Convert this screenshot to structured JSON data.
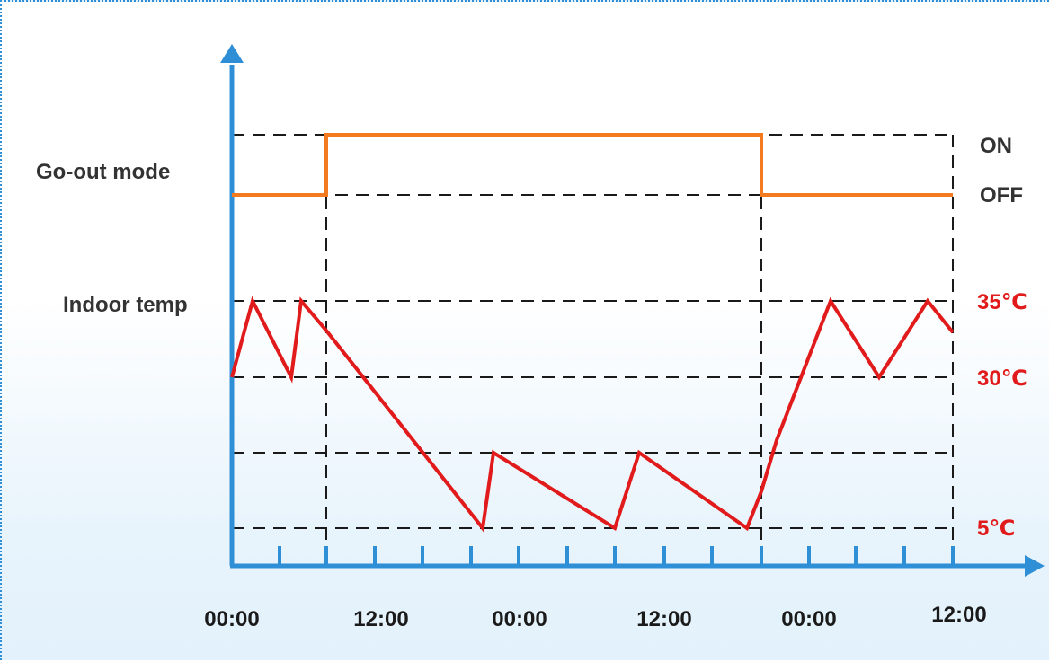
{
  "labels": {
    "go_out_mode": "Go-out mode",
    "indoor_temp": "Indoor temp",
    "on": "ON",
    "off": "OFF",
    "temp_35": "35℃",
    "temp_30": "30℃",
    "temp_5": "5℃"
  },
  "x_axis": {
    "tick_labels": [
      "00:00",
      "12:00",
      "00:00",
      "12:00",
      "00:00",
      "12:00"
    ]
  },
  "colors": {
    "axis": "#2f8fd6",
    "mode_line": "#f47a20",
    "temp_line": "#e11b1b",
    "temp_label": "#e11b1b",
    "text": "#333333",
    "guide": "#1a1a1a"
  }
}
